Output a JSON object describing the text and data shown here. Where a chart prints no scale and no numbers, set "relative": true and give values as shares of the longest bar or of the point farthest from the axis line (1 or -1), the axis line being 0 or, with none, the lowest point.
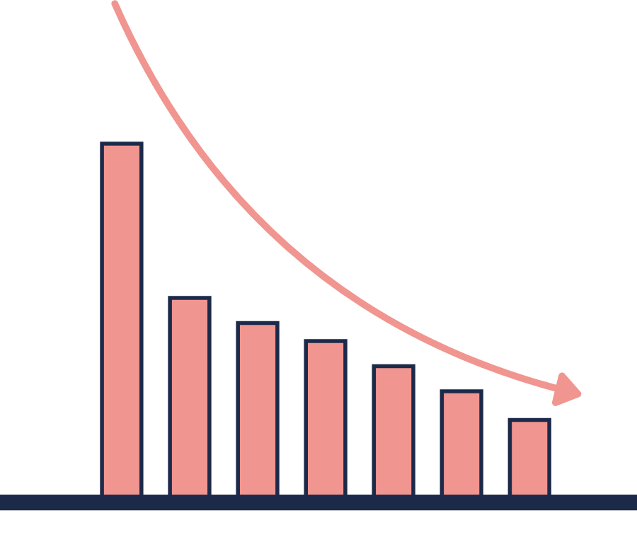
{
  "chart_data": {
    "type": "bar",
    "relative": true,
    "categories": [
      null,
      null,
      null,
      null,
      null,
      null,
      null
    ],
    "values": [
      1,
      0.57,
      0.5,
      0.45,
      0.38,
      0.31,
      0.23
    ],
    "color": "#f0958f",
    "grid": false,
    "legend": false
  }
}
